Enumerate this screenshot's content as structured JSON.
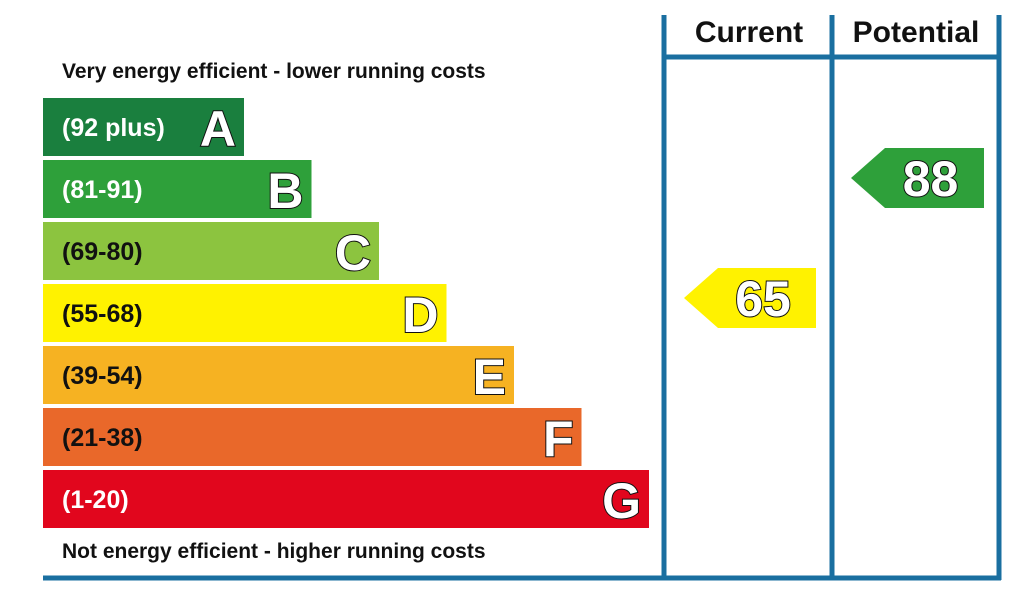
{
  "chart_data": {
    "type": "bar",
    "top_caption": "Very energy efficient - lower running costs",
    "bottom_caption": "Not energy efficient - higher running costs",
    "columns": [
      "Current",
      "Potential"
    ],
    "bands": [
      {
        "letter": "A",
        "range": "(92 plus)",
        "min": 92,
        "max": 100,
        "color": "#1a7f3e",
        "text_color": "#ffffff"
      },
      {
        "letter": "B",
        "range": "(81-91)",
        "min": 81,
        "max": 91,
        "color": "#2ea03a",
        "text_color": "#ffffff"
      },
      {
        "letter": "C",
        "range": "(69-80)",
        "min": 69,
        "max": 80,
        "color": "#8cc43f",
        "text_color": "#111111"
      },
      {
        "letter": "D",
        "range": "(55-68)",
        "min": 55,
        "max": 68,
        "color": "#fff200",
        "text_color": "#111111"
      },
      {
        "letter": "E",
        "range": "(39-54)",
        "min": 39,
        "max": 54,
        "color": "#f6b222",
        "text_color": "#111111"
      },
      {
        "letter": "F",
        "range": "(21-38)",
        "min": 21,
        "max": 38,
        "color": "#e9682a",
        "text_color": "#111111"
      },
      {
        "letter": "G",
        "range": "(1-20)",
        "min": 1,
        "max": 20,
        "color": "#e1061d",
        "text_color": "#ffffff"
      }
    ],
    "ratings": [
      {
        "column": "Current",
        "value": 65,
        "band": "D",
        "color": "#fff200"
      },
      {
        "column": "Potential",
        "value": 88,
        "band": "B",
        "color": "#2ea03a"
      }
    ],
    "line_color": "#1a6fa0"
  }
}
